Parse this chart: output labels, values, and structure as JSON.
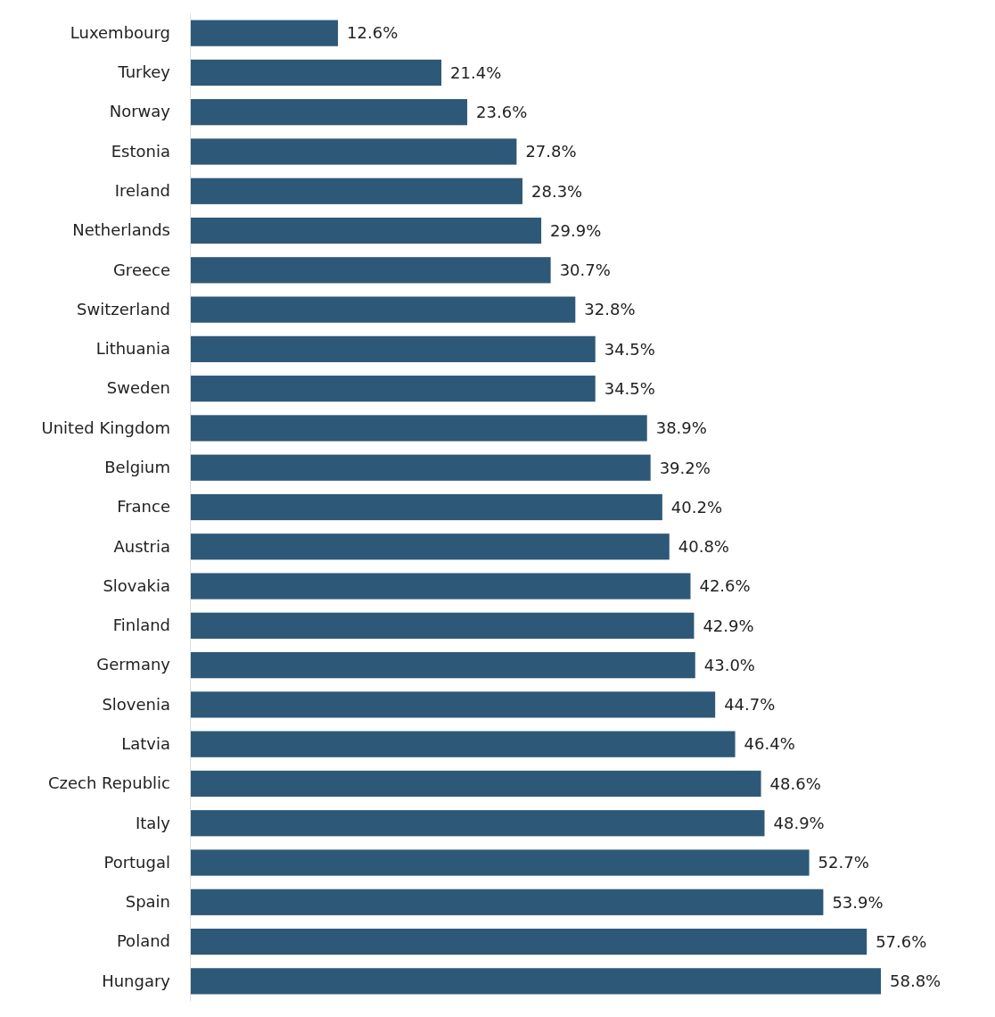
{
  "chart_data": {
    "type": "bar",
    "orientation": "horizontal",
    "categories": [
      "Luxembourg",
      "Turkey",
      "Norway",
      "Estonia",
      "Ireland",
      "Netherlands",
      "Greece",
      "Switzerland",
      "Lithuania",
      "Sweden",
      "United Kingdom",
      "Belgium",
      "France",
      "Austria",
      "Slovakia",
      "Finland",
      "Germany",
      "Slovenia",
      "Latvia",
      "Czech Republic",
      "Italy",
      "Portugal",
      "Spain",
      "Poland",
      "Hungary"
    ],
    "values": [
      12.6,
      21.4,
      23.6,
      27.8,
      28.3,
      29.9,
      30.7,
      32.8,
      34.5,
      34.5,
      38.9,
      39.2,
      40.2,
      40.8,
      42.6,
      42.9,
      43.0,
      44.7,
      46.4,
      48.6,
      48.9,
      52.7,
      53.9,
      57.6,
      58.8
    ],
    "value_labels": [
      "12.6%",
      "21.4%",
      "23.6%",
      "27.8%",
      "28.3%",
      "29.9%",
      "30.7%",
      "32.8%",
      "34.5%",
      "34.5%",
      "38.9%",
      "39.2%",
      "40.2%",
      "40.8%",
      "42.6%",
      "42.9%",
      "43.0%",
      "44.7%",
      "46.4%",
      "48.6%",
      "48.9%",
      "52.7%",
      "53.9%",
      "57.6%",
      "58.8%"
    ],
    "color": "#2e5878"
  }
}
